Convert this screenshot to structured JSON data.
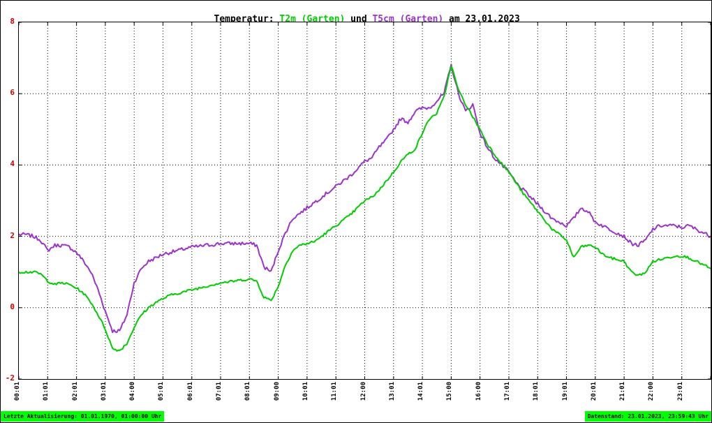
{
  "title": {
    "prefix": "Temperatur: ",
    "series1": "T2m (Garten)",
    "middle": " und ",
    "series2": "T5cm (Garten)",
    "suffix": " am 23.01.2023"
  },
  "footer": {
    "left": "Letzte Aktualisierung: 01.01.1970, 01:00:00 Uhr",
    "right": "Datenstand: 23.01.2023, 23:59:43 Uhr"
  },
  "colors": {
    "series1": "#00cc00",
    "series2": "#9933cc",
    "y_axis_label": "#cc0000",
    "footer_bg": "#00ff00",
    "grid": "#000000"
  },
  "chart_data": {
    "type": "line",
    "title": "Temperatur: T2m (Garten) und T5cm (Garten) am 23.01.2023",
    "xlabel": "",
    "ylabel": "",
    "ylim": [
      -2,
      8
    ],
    "yticks": [
      8,
      6,
      4,
      2,
      0,
      -2
    ],
    "xlim_hours": [
      0,
      24
    ],
    "x_start_hour": 0,
    "x_step_hours": 0.25,
    "grid": "dotted",
    "legend_position": "in-title",
    "xtick_labels": [
      "00:01",
      "01:01",
      "02:01",
      "03:01",
      "04:00",
      "05:01",
      "06:01",
      "07:01",
      "08:01",
      "09:00",
      "10:01",
      "11:01",
      "12:00",
      "13:01",
      "14:01",
      "15:00",
      "16:00",
      "17:01",
      "18:01",
      "19:01",
      "20:01",
      "21:01",
      "22:00",
      "23:01"
    ],
    "series": [
      {
        "name": "T2m (Garten)",
        "color": "#00cc00",
        "values": [
          1.0,
          1.0,
          1.0,
          0.95,
          0.75,
          0.65,
          0.7,
          0.65,
          0.55,
          0.4,
          0.15,
          -0.2,
          -0.6,
          -1.15,
          -1.2,
          -1.0,
          -0.55,
          -0.2,
          0.0,
          0.15,
          0.25,
          0.35,
          0.4,
          0.45,
          0.5,
          0.55,
          0.6,
          0.65,
          0.7,
          0.72,
          0.75,
          0.78,
          0.8,
          0.75,
          0.3,
          0.2,
          0.6,
          1.2,
          1.6,
          1.75,
          1.8,
          1.85,
          2.0,
          2.15,
          2.3,
          2.45,
          2.6,
          2.8,
          3.0,
          3.1,
          3.3,
          3.55,
          3.8,
          4.1,
          4.3,
          4.45,
          4.9,
          5.3,
          5.45,
          5.9,
          6.8,
          6.1,
          5.7,
          5.35,
          5.0,
          4.6,
          4.3,
          4.05,
          3.8,
          3.5,
          3.2,
          2.95,
          2.7,
          2.45,
          2.2,
          2.05,
          1.9,
          1.4,
          1.7,
          1.75,
          1.7,
          1.5,
          1.4,
          1.35,
          1.3,
          1.0,
          0.9,
          1.0,
          1.3,
          1.35,
          1.4,
          1.45,
          1.45,
          1.4,
          1.3,
          1.2,
          1.1
        ]
      },
      {
        "name": "T5cm (Garten)",
        "color": "#9933cc",
        "values": [
          2.05,
          2.05,
          2.0,
          1.9,
          1.6,
          1.75,
          1.75,
          1.7,
          1.55,
          1.3,
          1.0,
          0.5,
          -0.1,
          -0.65,
          -0.65,
          -0.2,
          0.7,
          1.1,
          1.3,
          1.4,
          1.5,
          1.55,
          1.6,
          1.65,
          1.7,
          1.72,
          1.75,
          1.77,
          1.8,
          1.8,
          1.8,
          1.8,
          1.8,
          1.75,
          1.15,
          1.0,
          1.6,
          2.1,
          2.5,
          2.65,
          2.8,
          2.95,
          3.1,
          3.25,
          3.4,
          3.55,
          3.7,
          3.9,
          4.1,
          4.2,
          4.5,
          4.7,
          5.0,
          5.3,
          5.2,
          5.5,
          5.6,
          5.6,
          5.8,
          6.0,
          6.8,
          6.0,
          5.5,
          5.7,
          4.9,
          4.5,
          4.2,
          4.0,
          3.8,
          3.5,
          3.3,
          3.1,
          2.9,
          2.7,
          2.5,
          2.4,
          2.3,
          2.5,
          2.8,
          2.7,
          2.4,
          2.3,
          2.2,
          2.1,
          2.0,
          1.8,
          1.75,
          1.9,
          2.2,
          2.3,
          2.3,
          2.3,
          2.25,
          2.3,
          2.2,
          2.1,
          2.0
        ]
      }
    ]
  }
}
